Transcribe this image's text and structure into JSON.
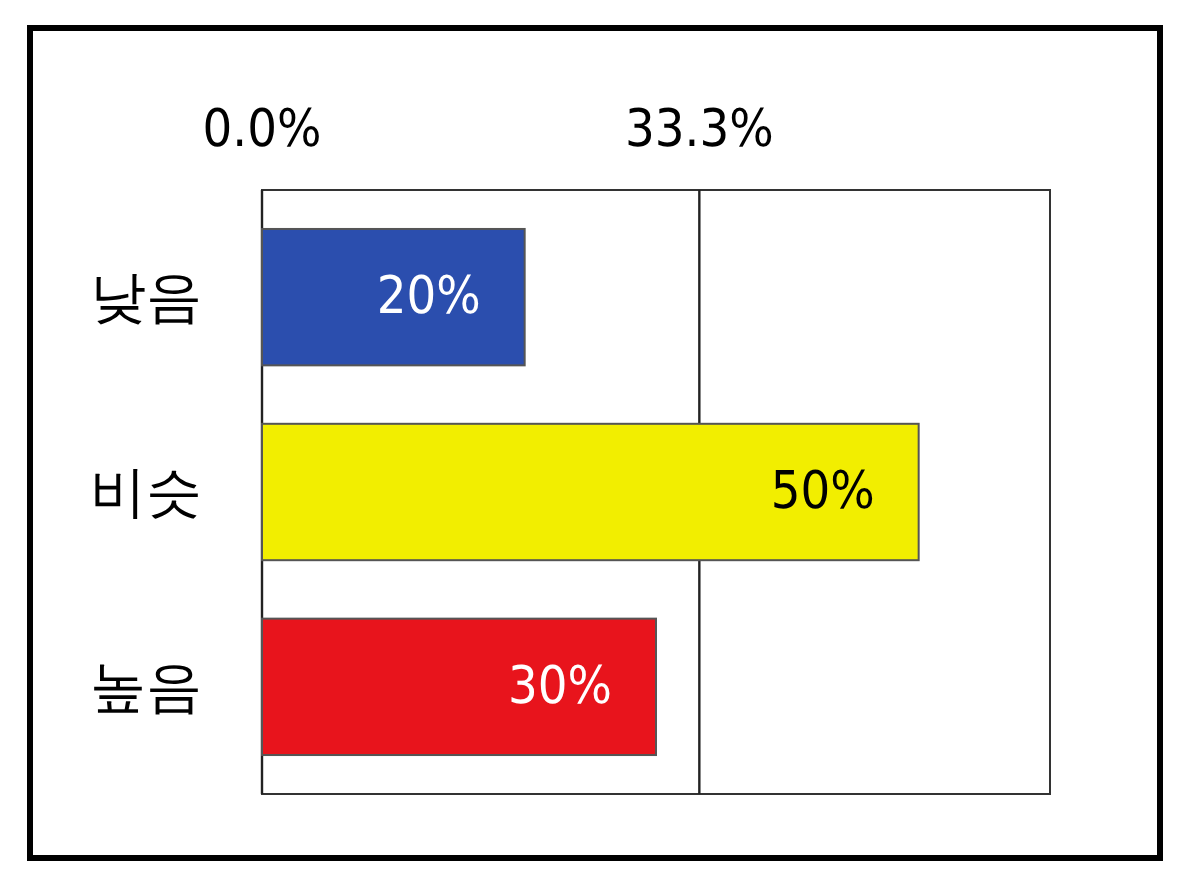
{
  "chart_data": {
    "type": "bar",
    "orientation": "horizontal",
    "categories": [
      "낮음",
      "비슷",
      "높음"
    ],
    "values": [
      20,
      50,
      30
    ],
    "colors": [
      "#2b4eae",
      "#f2ee00",
      "#e8141c"
    ],
    "value_labels": [
      "20%",
      "50%",
      "30%"
    ],
    "xlim": [
      0,
      60
    ],
    "xticks": [
      {
        "value": 0,
        "label": "0.0%"
      },
      {
        "value": 33.3,
        "label": "33.3%"
      }
    ],
    "grid": "x"
  }
}
